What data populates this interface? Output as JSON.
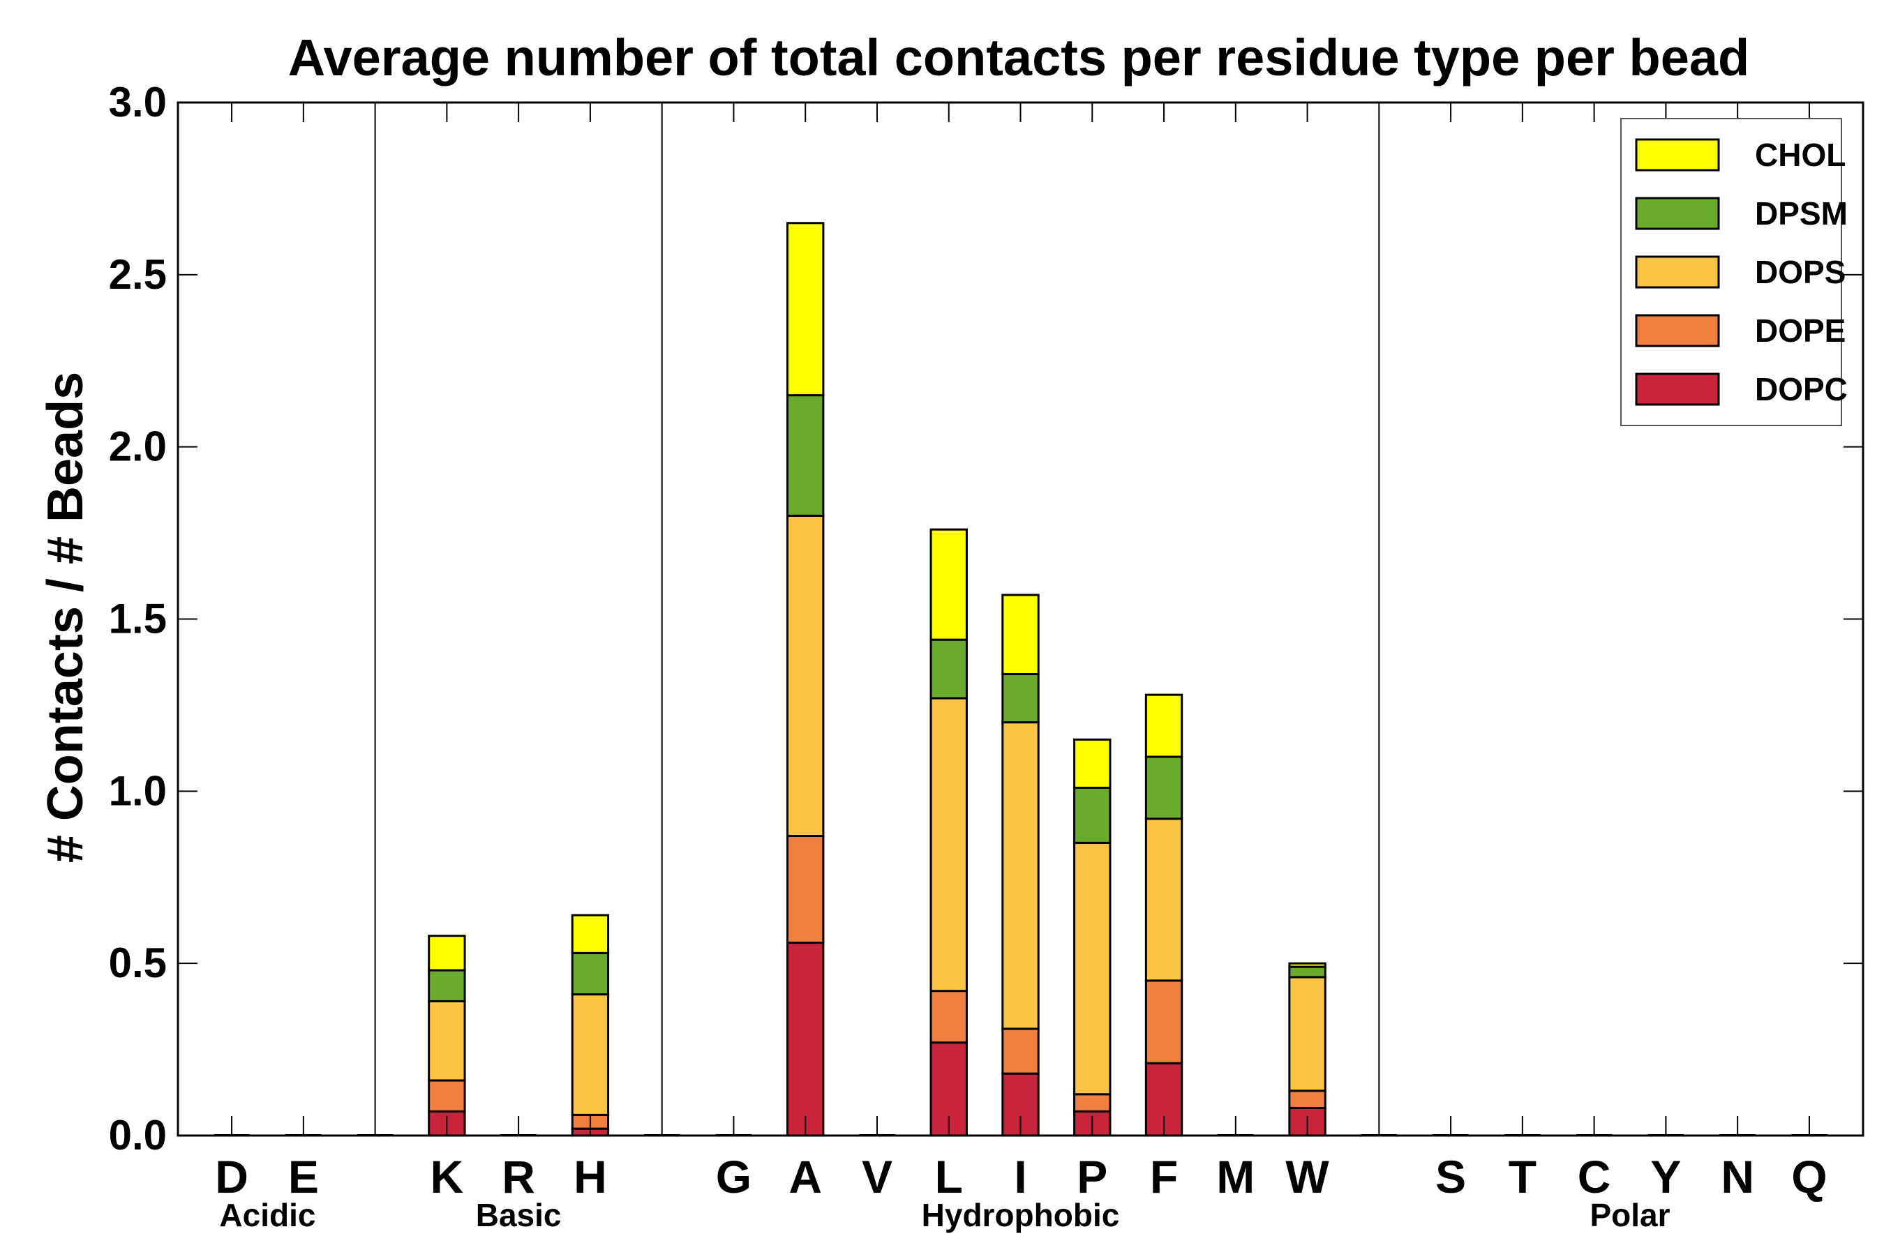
{
  "chart_data": {
    "type": "bar",
    "stacked": true,
    "title": "Average number of total contacts per residue type per bead",
    "xlabel": "",
    "ylabel": "# Contacts / # Beads",
    "ylim": [
      0,
      3.0
    ],
    "yticks": [
      "0.0",
      "0.5",
      "1.0",
      "1.5",
      "2.0",
      "2.5",
      "3.0"
    ],
    "grid": false,
    "legend_position": "top-right",
    "categories": [
      "D",
      "E",
      "",
      "K",
      "R",
      "H",
      "",
      "G",
      "A",
      "V",
      "L",
      "I",
      "P",
      "F",
      "M",
      "W",
      "",
      "S",
      "T",
      "C",
      "Y",
      "N",
      "Q"
    ],
    "groups": [
      {
        "label": "Acidic",
        "residues": [
          "D",
          "E"
        ]
      },
      {
        "label": "Basic",
        "residues": [
          "K",
          "R",
          "H"
        ]
      },
      {
        "label": "Hydrophobic",
        "residues": [
          "G",
          "A",
          "V",
          "L",
          "I",
          "P",
          "F",
          "M",
          "W"
        ]
      },
      {
        "label": "Polar",
        "residues": [
          "S",
          "T",
          "C",
          "Y",
          "N",
          "Q"
        ]
      }
    ],
    "series": [
      {
        "name": "DOPC",
        "color": "#c8243c",
        "values": [
          0,
          0,
          0,
          0.07,
          0,
          0.02,
          0,
          0,
          0.56,
          0,
          0.27,
          0.18,
          0.07,
          0.21,
          0,
          0.08,
          0,
          0,
          0,
          0,
          0,
          0,
          0
        ]
      },
      {
        "name": "DOPE",
        "color": "#f08040",
        "values": [
          0,
          0,
          0,
          0.09,
          0,
          0.04,
          0,
          0,
          0.31,
          0,
          0.15,
          0.13,
          0.05,
          0.24,
          0,
          0.05,
          0,
          0,
          0,
          0,
          0,
          0,
          0
        ]
      },
      {
        "name": "DOPS",
        "color": "#fcc444",
        "values": [
          0,
          0,
          0,
          0.23,
          0,
          0.35,
          0,
          0,
          0.93,
          0,
          0.85,
          0.89,
          0.73,
          0.47,
          0,
          0.33,
          0,
          0,
          0,
          0,
          0,
          0,
          0
        ]
      },
      {
        "name": "DPSM",
        "color": "#6aaa2c",
        "values": [
          0,
          0,
          0,
          0.09,
          0,
          0.12,
          0,
          0,
          0.35,
          0,
          0.17,
          0.14,
          0.16,
          0.18,
          0,
          0.03,
          0,
          0,
          0,
          0,
          0,
          0,
          0
        ]
      },
      {
        "name": "CHOL",
        "color": "#ffff00",
        "values": [
          0,
          0,
          0,
          0.1,
          0,
          0.11,
          0,
          0,
          0.5,
          0,
          0.32,
          0.23,
          0.14,
          0.18,
          0,
          0.01,
          0,
          0,
          0,
          0,
          0,
          0,
          0
        ]
      }
    ],
    "legend_order": [
      "CHOL",
      "DPSM",
      "DOPS",
      "DOPE",
      "DOPC"
    ]
  }
}
